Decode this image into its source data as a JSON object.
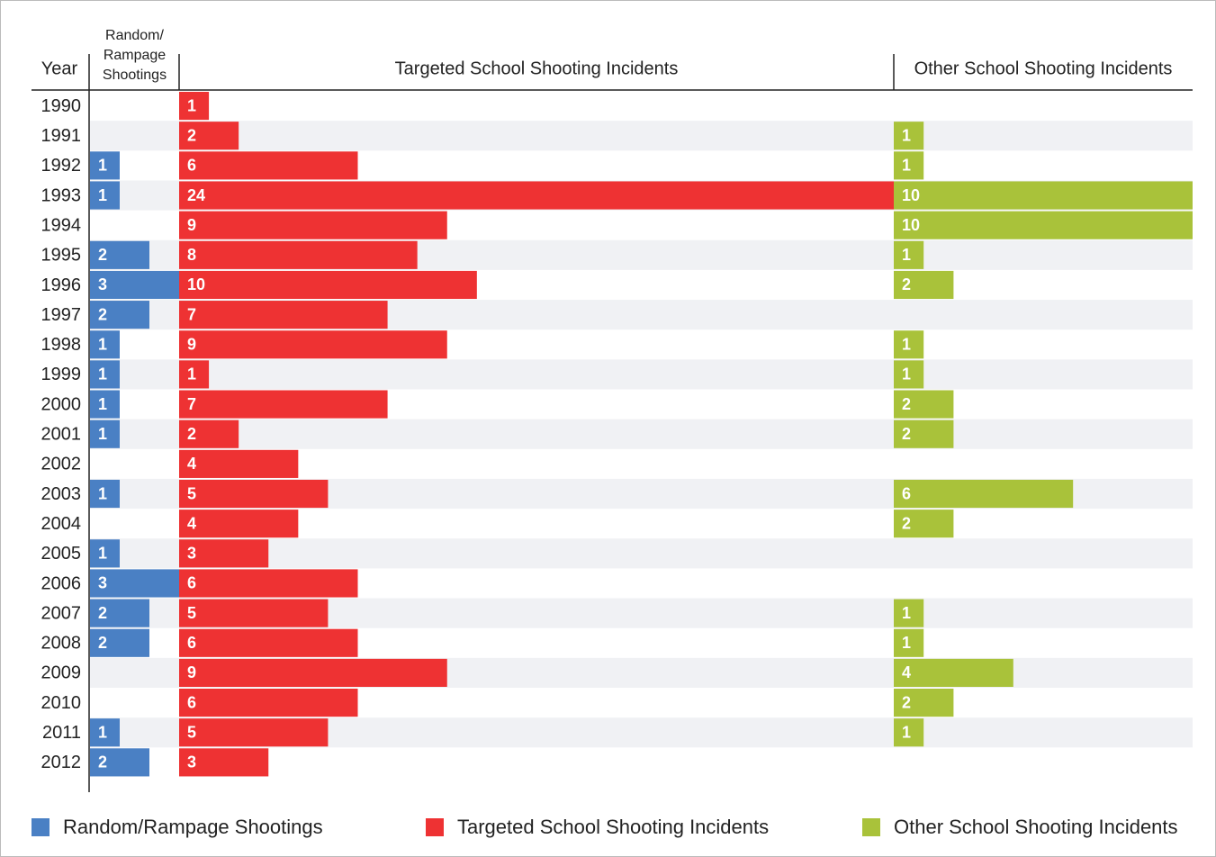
{
  "chart_data": {
    "type": "bar",
    "orientation": "horizontal",
    "year_header": "Year",
    "categories": [
      "1990",
      "1991",
      "1992",
      "1993",
      "1994",
      "1995",
      "1996",
      "1997",
      "1998",
      "1999",
      "2000",
      "2001",
      "2002",
      "2003",
      "2004",
      "2005",
      "2006",
      "2007",
      "2008",
      "2009",
      "2010",
      "2011",
      "2012"
    ],
    "series": [
      {
        "name": "Random/Rampage Shootings",
        "header": [
          "Random/",
          "Rampage",
          "Shootings"
        ],
        "color": "#4a80c4",
        "xlim": [
          0,
          3
        ],
        "values": [
          0,
          0,
          1,
          1,
          0,
          2,
          3,
          2,
          1,
          1,
          1,
          1,
          0,
          1,
          0,
          1,
          3,
          2,
          2,
          0,
          0,
          1,
          2
        ]
      },
      {
        "name": "Targeted School Shooting Incidents",
        "header": [
          "Targeted School Shooting Incidents"
        ],
        "color": "#ee3233",
        "xlim": [
          0,
          24
        ],
        "values": [
          1,
          2,
          6,
          24,
          9,
          8,
          10,
          7,
          9,
          1,
          7,
          2,
          4,
          5,
          4,
          3,
          6,
          5,
          6,
          9,
          6,
          5,
          3
        ]
      },
      {
        "name": "Other School Shooting Incidents",
        "header": [
          "Other School Shooting Incidents"
        ],
        "color": "#a9c23a",
        "xlim": [
          0,
          10
        ],
        "values": [
          0,
          1,
          1,
          10,
          10,
          1,
          2,
          0,
          1,
          1,
          2,
          2,
          0,
          6,
          2,
          0,
          0,
          1,
          1,
          4,
          2,
          1,
          0
        ]
      }
    ],
    "legend": "bottom"
  }
}
